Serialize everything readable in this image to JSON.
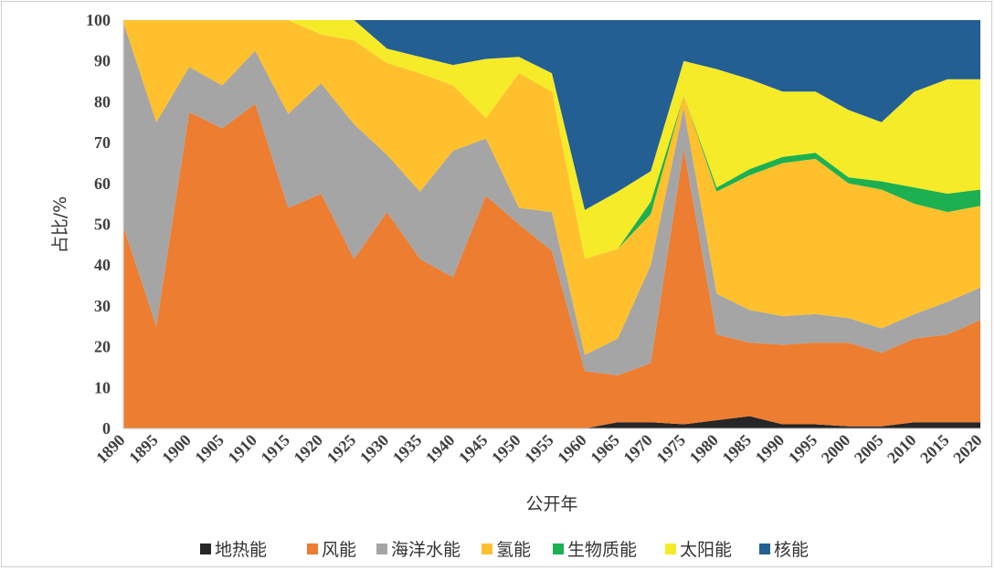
{
  "chart_data": {
    "type": "area",
    "stacked": true,
    "title": "",
    "xlabel": "公开年",
    "ylabel": "占比/%",
    "ylim": [
      0,
      100
    ],
    "yticks": [
      "0",
      "10",
      "20",
      "30",
      "40",
      "50",
      "60",
      "70",
      "80",
      "90",
      "100"
    ],
    "categories": [
      "1890",
      "1895",
      "1900",
      "1905",
      "1910",
      "1915",
      "1920",
      "1925",
      "1930",
      "1935",
      "1940",
      "1945",
      "1950",
      "1955",
      "1960",
      "1965",
      "1970",
      "1975",
      "1980",
      "1985",
      "1990",
      "1995",
      "2000",
      "2005",
      "2010",
      "2015",
      "2020"
    ],
    "legend_position": "bottom",
    "series": [
      {
        "name": "地热能",
        "color": "#262626",
        "values": [
          0,
          0,
          0,
          0,
          0,
          0,
          0,
          0,
          0,
          0,
          0,
          0,
          0,
          0,
          0,
          1.5,
          1.5,
          1,
          2,
          3,
          1,
          1,
          0.5,
          0.5,
          1.5,
          1.5,
          1.5
        ]
      },
      {
        "name": "风能",
        "color": "#ed7d31",
        "values": [
          49.5,
          25,
          77.5,
          73.5,
          79.5,
          54,
          57.5,
          41.5,
          53,
          41.5,
          37,
          57,
          50,
          43.5,
          14,
          11.5,
          14.5,
          67.5,
          21,
          18,
          19.5,
          20,
          20.5,
          18,
          20.5,
          21.5,
          25
        ]
      },
      {
        "name": "海洋水能",
        "color": "#a5a5a5",
        "values": [
          50,
          50,
          11,
          10.5,
          13,
          23,
          27,
          33,
          14,
          16.5,
          31,
          14,
          4,
          9.5,
          4,
          9,
          24,
          10,
          10,
          8,
          7,
          7,
          6,
          6,
          6,
          8,
          8
        ]
      },
      {
        "name": "氢能",
        "color": "#ffc02e",
        "values": [
          0.5,
          25,
          11.5,
          16,
          7.5,
          23,
          12,
          20.5,
          22.5,
          29,
          16,
          5,
          33,
          29.5,
          23.5,
          22,
          12.5,
          3,
          25,
          33,
          37.5,
          38,
          33,
          34,
          27,
          22,
          20
        ]
      },
      {
        "name": "生物质能",
        "color": "#1db050",
        "values": [
          0,
          0,
          0,
          0,
          0,
          0,
          0,
          0,
          0,
          0,
          0,
          0,
          0,
          0,
          0,
          0,
          3,
          0,
          1,
          1.5,
          1.5,
          1.5,
          1.5,
          2,
          4,
          4.5,
          4
        ]
      },
      {
        "name": "太阳能",
        "color": "#f5eb28",
        "values": [
          0,
          0,
          0,
          0,
          0,
          0,
          3.5,
          5,
          3.5,
          4,
          5,
          14.5,
          4,
          4.5,
          12,
          14,
          7.5,
          8.5,
          29,
          22,
          16,
          15,
          16.5,
          14.5,
          23.5,
          28,
          27
        ]
      },
      {
        "name": "核能",
        "color": "#235f93",
        "values": [
          0,
          0,
          0,
          0,
          0,
          0,
          0,
          0,
          7,
          9,
          11,
          9.5,
          9,
          13,
          46.5,
          42,
          37,
          10,
          12,
          14.5,
          17.5,
          17.5,
          22,
          25,
          17.5,
          14.5,
          14.5
        ]
      }
    ]
  }
}
